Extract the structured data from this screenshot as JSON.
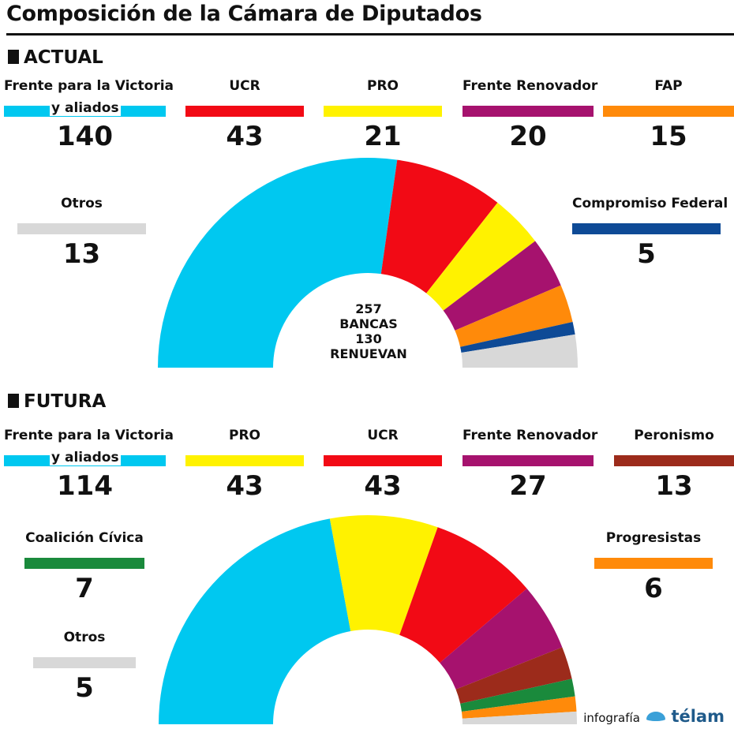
{
  "title": "Composición de la Cámara de Diputados",
  "credit": {
    "prefix": "infografía",
    "brand": "télam"
  },
  "chart_data": [
    {
      "type": "pie",
      "section": "ACTUAL",
      "center_lines": [
        "257",
        "BANCAS",
        "130",
        "RENUEVAN"
      ],
      "slices": [
        {
          "label": "Frente para la Victoria y aliados",
          "label_lines": [
            "Frente para la Victoria",
            "y aliados"
          ],
          "value": 140,
          "color": "#00c8f0"
        },
        {
          "label": "UCR",
          "value": 43,
          "color": "#f20a15"
        },
        {
          "label": "PRO",
          "value": 21,
          "color": "#fff200"
        },
        {
          "label": "Frente Renovador",
          "value": 20,
          "color": "#a6126e"
        },
        {
          "label": "FAP",
          "value": 15,
          "color": "#ff8a0a"
        },
        {
          "label": "Compromiso Federal",
          "value": 5,
          "color": "#0e4a96"
        },
        {
          "label": "Otros",
          "value": 13,
          "color": "#d8d8d8"
        }
      ]
    },
    {
      "type": "pie",
      "section": "FUTURA",
      "center_lines": [],
      "slices": [
        {
          "label": "Frente para la Victoria y aliados",
          "label_lines": [
            "Frente para la Victoria",
            "y aliados"
          ],
          "value": 114,
          "color": "#00c8f0"
        },
        {
          "label": "PRO",
          "value": 43,
          "color": "#fff200"
        },
        {
          "label": "UCR",
          "value": 43,
          "color": "#f20a15"
        },
        {
          "label": "Frente Renovador",
          "value": 27,
          "color": "#a6126e"
        },
        {
          "label": "Peronismo",
          "value": 13,
          "color": "#9c2b1b"
        },
        {
          "label": "Coalición Cívica",
          "value": 7,
          "color": "#1a8a3c"
        },
        {
          "label": "Progresistas",
          "value": 6,
          "color": "#ff8a0a"
        },
        {
          "label": "Otros",
          "value": 5,
          "color": "#d8d8d8"
        }
      ]
    }
  ]
}
